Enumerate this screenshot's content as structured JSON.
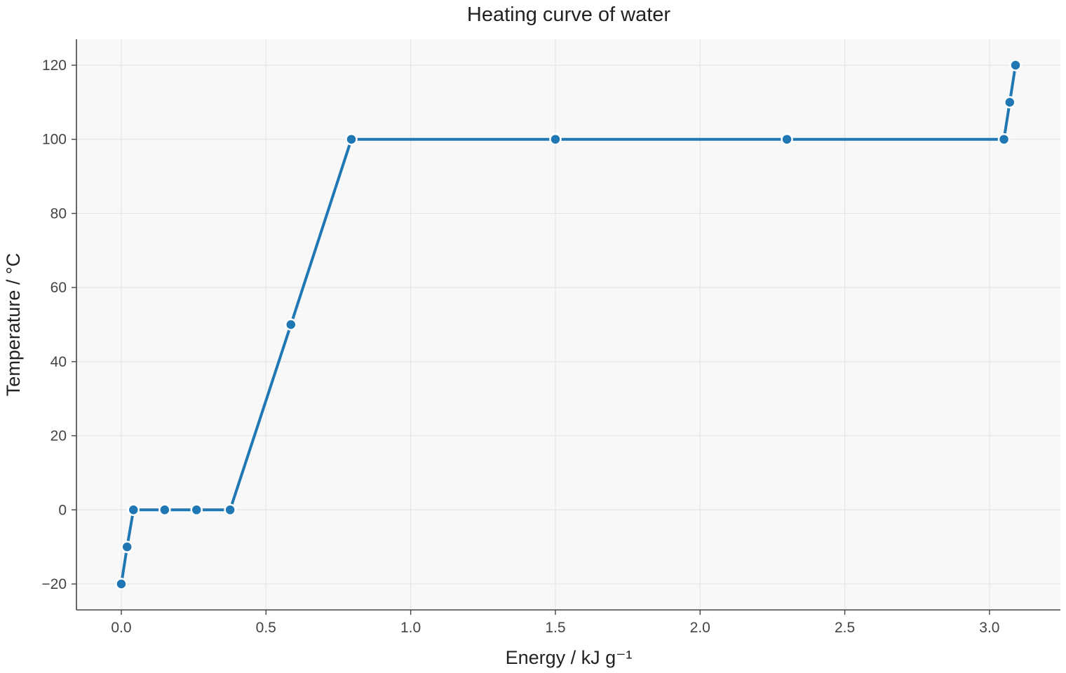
{
  "chart_data": {
    "type": "line",
    "title": "Heating curve of water",
    "xlabel": "Energy / kJ g⁻¹",
    "ylabel": "Temperature / °C",
    "xlim": [
      -0.155,
      3.245
    ],
    "ylim": [
      -27,
      127
    ],
    "xticks": [
      0.0,
      0.5,
      1.0,
      1.5,
      2.0,
      2.5,
      3.0
    ],
    "xtick_labels": [
      "0.0",
      "0.5",
      "1.0",
      "1.5",
      "2.0",
      "2.5",
      "3.0"
    ],
    "yticks": [
      -20,
      0,
      20,
      40,
      60,
      80,
      100,
      120
    ],
    "ytick_labels": [
      "−20",
      "0",
      "20",
      "40",
      "60",
      "80",
      "100",
      "120"
    ],
    "grid": true,
    "series": [
      {
        "color": "#1f77b4",
        "x": [
          0.0,
          0.02,
          0.042,
          0.15,
          0.26,
          0.376,
          0.586,
          0.795,
          1.5,
          2.3,
          3.05,
          3.07,
          3.09
        ],
        "y": [
          -20,
          -10,
          0,
          0,
          0,
          0,
          50,
          100,
          100,
          100,
          100,
          110,
          120
        ]
      }
    ]
  }
}
